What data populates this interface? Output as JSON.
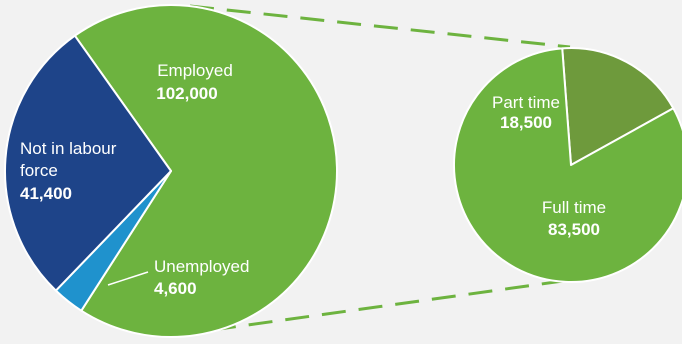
{
  "chart_data": [
    {
      "type": "pie",
      "slices": [
        {
          "label": "Employed",
          "value": 102000,
          "value_label": "102,000",
          "color": "#6db33f"
        },
        {
          "label": "Unemployed",
          "value": 4600,
          "value_label": "4,600",
          "color": "#1f92cd"
        },
        {
          "label": "Not in labour force",
          "value": 41400,
          "value_label": "41,400",
          "color": "#1e4489"
        }
      ]
    },
    {
      "type": "pie",
      "breakdown_of": "Employed",
      "slices": [
        {
          "label": "Part time",
          "value": 18500,
          "value_label": "18,500",
          "color": "#6e9a3c"
        },
        {
          "label": "Full time",
          "value": 83500,
          "value_label": "83,500",
          "color": "#6db33f"
        }
      ]
    }
  ],
  "colors": {
    "background": "#f2f2f2",
    "connector": "#6db33f",
    "text": "#ffffff",
    "slice_border": "#ffffff"
  },
  "text": {
    "employed_label": "Employed",
    "employed_value": "102,000",
    "nilf_label_line1": "Not in labour",
    "nilf_label_line2": "force",
    "nilf_value": "41,400",
    "unemployed_label": "Unemployed",
    "unemployed_value": "4,600",
    "parttime_label": "Part time",
    "parttime_value": "18,500",
    "fulltime_label": "Full time",
    "fulltime_value": "83,500"
  }
}
